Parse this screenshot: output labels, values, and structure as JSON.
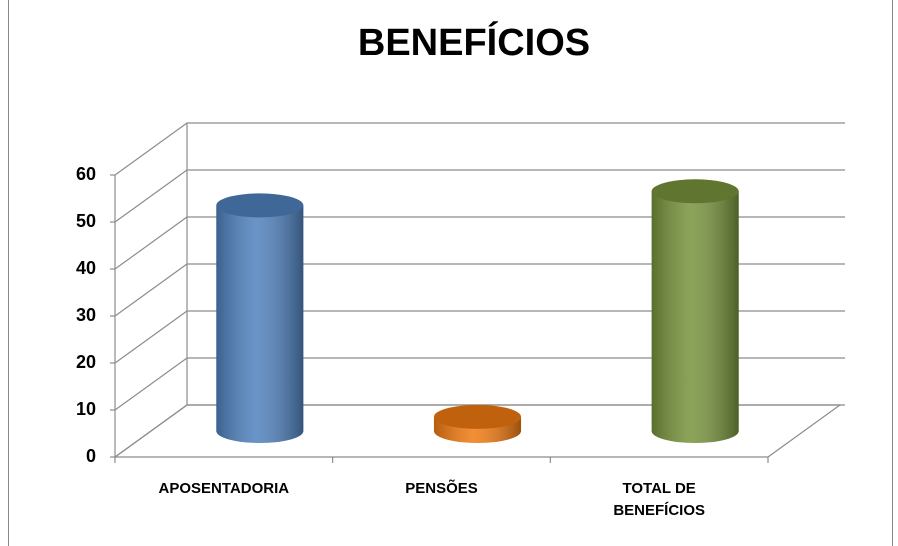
{
  "chart_data": {
    "type": "bar3d",
    "title": "BENEFÍCIOS",
    "categories": [
      "APOSENTADORIA",
      "PENSÕES",
      "TOTAL DE BENEFÍCIOS"
    ],
    "values": [
      48,
      3,
      51
    ],
    "colors": [
      "#4f81bd",
      "#f07a12",
      "#77933c"
    ],
    "ylim": [
      0,
      60
    ],
    "yticks": [
      0,
      10,
      20,
      30,
      40,
      50,
      60
    ],
    "grid": true
  }
}
